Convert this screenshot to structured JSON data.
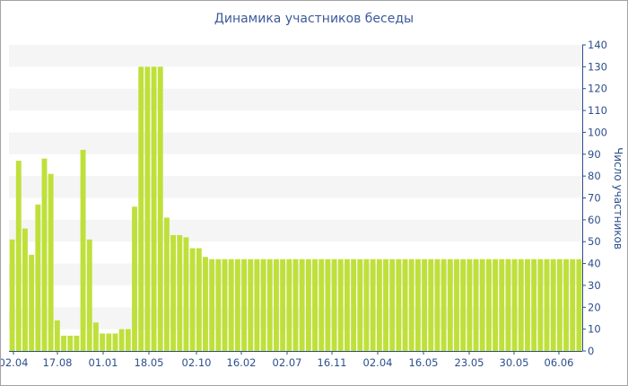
{
  "chart_data": {
    "type": "bar",
    "title": "Динамика участников беседы",
    "ylabel": "Число участников",
    "xlabel": "",
    "ylim": [
      0,
      140
    ],
    "yticks": [
      0,
      10,
      20,
      30,
      40,
      50,
      60,
      70,
      80,
      90,
      100,
      110,
      120,
      130,
      140
    ],
    "x_tick_labels": [
      "02.04",
      "17.08",
      "01.01",
      "18.05",
      "02.10",
      "16.02",
      "02.07",
      "16.11",
      "02.04",
      "16.05",
      "23.05",
      "30.05",
      "06.06"
    ],
    "grid": "horizontal alternating bands",
    "colors": {
      "bar": "#bfe03a",
      "band": "#f5f5f5",
      "axis": "#2d4f8c",
      "title": "#3b5a9a",
      "frame": "#a3a3a3"
    },
    "values": [
      51,
      87,
      56,
      44,
      67,
      88,
      81,
      14,
      7,
      7,
      7,
      92,
      51,
      13,
      8,
      8,
      8,
      10,
      10,
      66,
      130,
      130,
      130,
      130,
      61,
      53,
      53,
      52,
      47,
      47,
      43,
      42,
      42,
      42,
      42,
      42,
      42,
      42,
      42,
      42,
      42,
      42,
      42,
      42,
      42,
      42,
      42,
      42,
      42,
      42,
      42,
      42,
      42,
      42,
      42,
      42,
      42,
      42,
      42,
      42,
      42,
      42,
      42,
      42,
      42,
      42,
      42,
      42,
      42,
      42,
      42,
      42,
      42,
      42,
      42,
      42,
      42,
      42,
      42,
      42,
      42,
      42,
      42,
      42,
      42,
      42,
      42,
      42,
      42
    ]
  }
}
